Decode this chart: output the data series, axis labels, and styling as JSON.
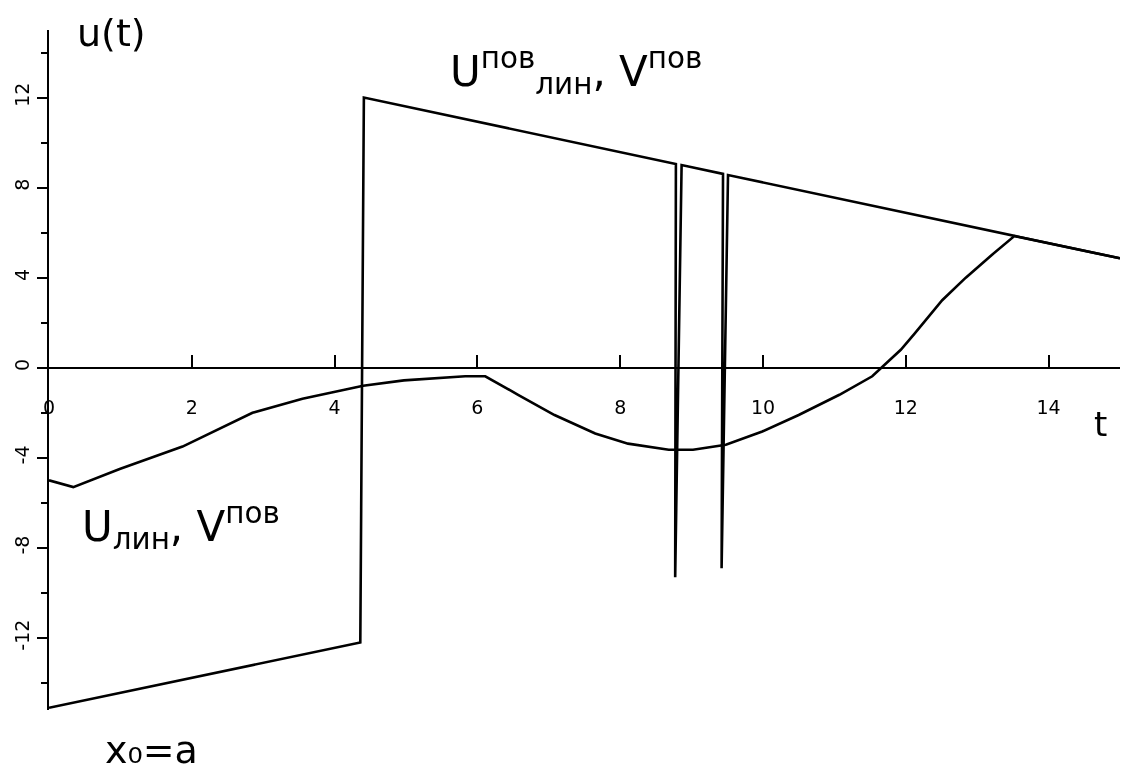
{
  "chart_data": {
    "type": "line",
    "xlabel": "t",
    "ylabel": "u(t)",
    "annotations": [
      "x₀=a"
    ],
    "xlim": [
      0,
      15
    ],
    "ylim": [
      -15.2,
      15
    ],
    "xticks": [
      0,
      2,
      4,
      6,
      8,
      10,
      12,
      14
    ],
    "yticks": [
      {
        "value": 14,
        "label": null
      },
      12,
      {
        "value": 10,
        "label": null
      },
      8,
      {
        "value": 6,
        "label": null
      },
      4,
      {
        "value": 2,
        "label": null
      },
      0,
      {
        "value": -2,
        "label": null
      },
      -4,
      {
        "value": -6,
        "label": null
      },
      -8,
      {
        "value": -10,
        "label": null
      },
      -12,
      {
        "value": -14,
        "label": null
      }
    ],
    "line_style": "solid",
    "marker": "none",
    "series": [
      {
        "name": "U$^{пов}$$_{лин}$, V$^{пов}$",
        "color": "#000000",
        "x": [
          0,
          4.36,
          4.41,
          8.78,
          8.77,
          8.86,
          9.44,
          9.42,
          9.51,
          15.0
        ],
        "values": [
          -15.1,
          -12.2,
          12.0,
          9.05,
          -9.3,
          9.0,
          8.61,
          -8.9,
          8.56,
          4.86
        ]
      },
      {
        "name": "U$_{лин}$, V$^{пов}$",
        "color": "#000000",
        "x": [
          0,
          0.34,
          0.99,
          1.87,
          2.85,
          3.55,
          4.4,
          4.97,
          5.83,
          6.11,
          6.57,
          7.08,
          7.65,
          8.11,
          8.68,
          9.02,
          9.48,
          9.99,
          10.5,
          11.07,
          11.53,
          11.93,
          12.12,
          12.51,
          12.84,
          13.2,
          13.52,
          15.0
        ],
        "values": [
          -5.0,
          -5.3,
          -4.5,
          -3.5,
          -2.0,
          -1.38,
          -0.8,
          -0.56,
          -0.38,
          -0.38,
          -1.2,
          -2.1,
          -2.92,
          -3.37,
          -3.64,
          -3.64,
          -3.42,
          -2.83,
          -2.1,
          -1.2,
          -0.38,
          0.8,
          1.5,
          3.0,
          4.0,
          5.0,
          5.85,
          4.86
        ]
      }
    ]
  }
}
